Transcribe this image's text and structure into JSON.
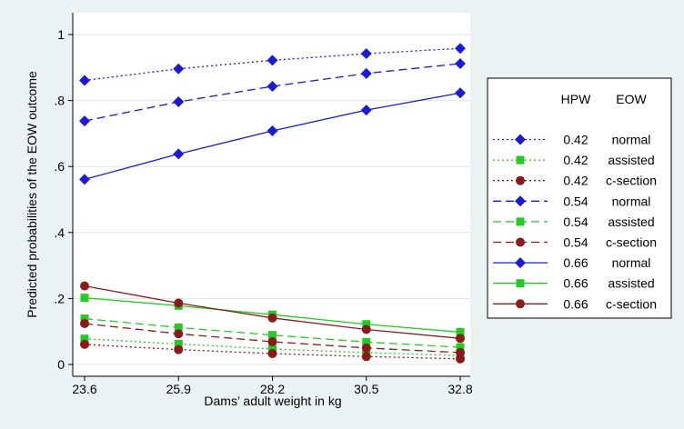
{
  "chart_data": {
    "type": "line",
    "xlabel": "Dams’ adult weight in kg",
    "ylabel": "Predicted probabilities of the EOW outcome",
    "x": [
      23.6,
      25.9,
      28.2,
      30.5,
      32.8
    ],
    "x_tick_labels": [
      "23.6",
      "25.9",
      "28.2",
      "30.5",
      "32.8"
    ],
    "xlim": [
      23.6,
      32.8
    ],
    "ylim": [
      0,
      1
    ],
    "y_ticks": [
      0,
      0.2,
      0.4,
      0.6,
      0.8,
      1
    ],
    "y_tick_labels": [
      "0",
      ".2",
      ".4",
      ".6",
      ".8",
      "1"
    ],
    "grid": "horizontal",
    "legend": {
      "placement": "right",
      "header_hpw": "HPW",
      "header_eow": "EOW"
    },
    "series": [
      {
        "hpw": "0.42",
        "eow": "normal",
        "color": "#1a1adb",
        "marker": "diamond",
        "dash": "dotted",
        "values": [
          0.861,
          0.896,
          0.922,
          0.942,
          0.958
        ]
      },
      {
        "hpw": "0.42",
        "eow": "assisted",
        "color": "#22cc22",
        "marker": "square",
        "dash": "dotted",
        "values": [
          0.078,
          0.062,
          0.047,
          0.036,
          0.027
        ]
      },
      {
        "hpw": "0.42",
        "eow": "c-section",
        "color": "#8b1a1a",
        "marker": "circle",
        "dash": "dotted",
        "values": [
          0.061,
          0.045,
          0.033,
          0.024,
          0.017
        ]
      },
      {
        "hpw": "0.54",
        "eow": "normal",
        "color": "#1a1adb",
        "marker": "diamond",
        "dash": "dashed",
        "values": [
          0.738,
          0.796,
          0.843,
          0.882,
          0.912
        ]
      },
      {
        "hpw": "0.54",
        "eow": "assisted",
        "color": "#22cc22",
        "marker": "square",
        "dash": "dashed",
        "values": [
          0.139,
          0.112,
          0.089,
          0.068,
          0.052
        ]
      },
      {
        "hpw": "0.54",
        "eow": "c-section",
        "color": "#8b1a1a",
        "marker": "circle",
        "dash": "dashed",
        "values": [
          0.124,
          0.093,
          0.069,
          0.05,
          0.036
        ]
      },
      {
        "hpw": "0.66",
        "eow": "normal",
        "color": "#1a1adb",
        "marker": "diamond",
        "dash": "solid",
        "values": [
          0.561,
          0.638,
          0.708,
          0.771,
          0.823
        ]
      },
      {
        "hpw": "0.66",
        "eow": "assisted",
        "color": "#22cc22",
        "marker": "square",
        "dash": "solid",
        "values": [
          0.202,
          0.178,
          0.151,
          0.122,
          0.098
        ]
      },
      {
        "hpw": "0.66",
        "eow": "c-section",
        "color": "#8b1a1a",
        "marker": "circle",
        "dash": "solid",
        "values": [
          0.238,
          0.186,
          0.141,
          0.106,
          0.079
        ]
      }
    ]
  }
}
